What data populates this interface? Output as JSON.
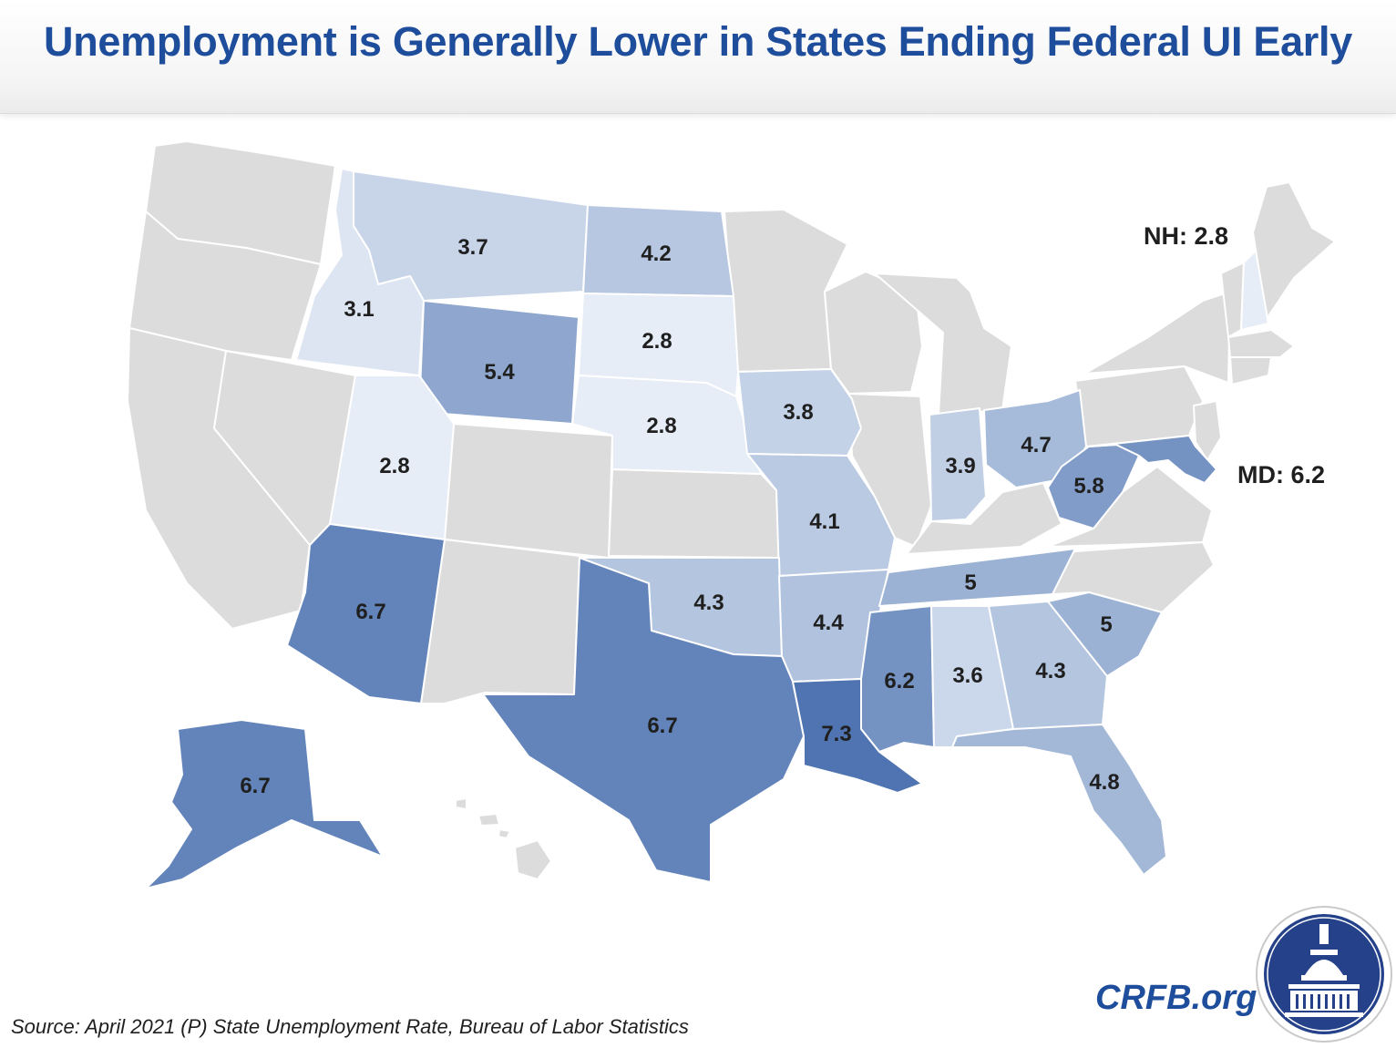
{
  "title": "Unemployment is Generally Lower in States Ending Federal UI Early",
  "source": "Source: April 2021 (P) State Unemployment Rate, Bureau of Labor Statistics",
  "brand": "CRFB.org",
  "callouts": {
    "nh": "NH: 2.8",
    "md": "MD: 6.2"
  },
  "colors": {
    "no_data": "#dcdcdc",
    "scale_light": "#e6edf6",
    "scale_dark": "#4f74b1",
    "title": "#1e4d9b"
  },
  "chart_data": {
    "type": "choropleth",
    "title": "Unemployment is Generally Lower in States Ending Federal UI Early",
    "metric": "April 2021 (P) State Unemployment Rate (%)",
    "states": [
      {
        "id": "MT",
        "value": 3.7,
        "label": "3.7"
      },
      {
        "id": "ND",
        "value": 4.2,
        "label": "4.2"
      },
      {
        "id": "ID",
        "value": 3.1,
        "label": "3.1"
      },
      {
        "id": "SD",
        "value": 2.8,
        "label": "2.8"
      },
      {
        "id": "WY",
        "value": 5.4,
        "label": "5.4"
      },
      {
        "id": "NE",
        "value": 2.8,
        "label": "2.8"
      },
      {
        "id": "UT",
        "value": 2.8,
        "label": "2.8"
      },
      {
        "id": "IA",
        "value": 3.8,
        "label": "3.8"
      },
      {
        "id": "IN",
        "value": 3.9,
        "label": "3.9"
      },
      {
        "id": "OH",
        "value": 4.7,
        "label": "4.7"
      },
      {
        "id": "WV",
        "value": 5.8,
        "label": "5.8"
      },
      {
        "id": "MO",
        "value": 4.1,
        "label": "4.1"
      },
      {
        "id": "AZ",
        "value": 6.7,
        "label": "6.7"
      },
      {
        "id": "OK",
        "value": 4.3,
        "label": "4.3"
      },
      {
        "id": "AR",
        "value": 4.4,
        "label": "4.4"
      },
      {
        "id": "TN",
        "value": 5.0,
        "label": "5"
      },
      {
        "id": "SC",
        "value": 5.0,
        "label": "5"
      },
      {
        "id": "TX",
        "value": 6.7,
        "label": "6.7"
      },
      {
        "id": "MS",
        "value": 6.2,
        "label": "6.2"
      },
      {
        "id": "AL",
        "value": 3.6,
        "label": "3.6"
      },
      {
        "id": "GA",
        "value": 4.3,
        "label": "4.3"
      },
      {
        "id": "LA",
        "value": 7.3,
        "label": "7.3"
      },
      {
        "id": "FL",
        "value": 4.8,
        "label": "4.8"
      },
      {
        "id": "AK",
        "value": 6.7,
        "label": "6.7"
      },
      {
        "id": "NH",
        "value": 2.8,
        "label": "2.8"
      },
      {
        "id": "MD",
        "value": 6.2,
        "label": "6.2"
      }
    ],
    "value_range": [
      2.8,
      7.3
    ]
  }
}
